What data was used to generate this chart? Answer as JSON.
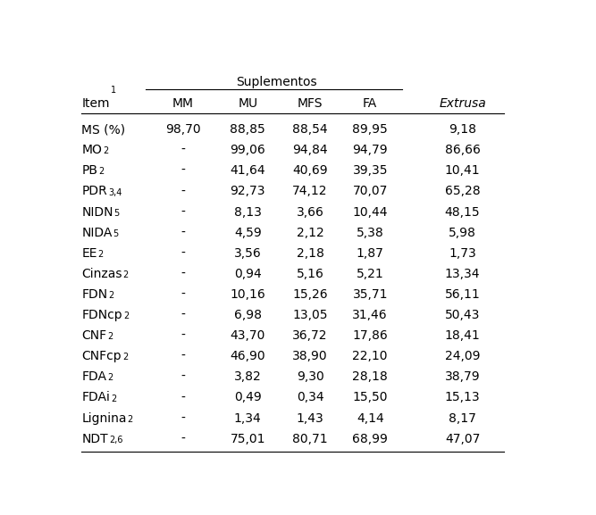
{
  "title_suplementos": "Suplementos",
  "col_headers": [
    "MM",
    "MU",
    "MFS",
    "FA",
    "Extrusa"
  ],
  "col_header_italic": [
    false,
    false,
    false,
    false,
    true
  ],
  "row_labels": [
    [
      "MS (%)",
      ""
    ],
    [
      "MO",
      "2"
    ],
    [
      "PB",
      "2"
    ],
    [
      "PDR",
      "3,4"
    ],
    [
      "NIDN",
      "5"
    ],
    [
      "NIDA",
      "5"
    ],
    [
      "EE",
      "2"
    ],
    [
      "Cinzas",
      "2"
    ],
    [
      "FDN",
      "2"
    ],
    [
      "FDNcp",
      "2"
    ],
    [
      "CNF",
      "2"
    ],
    [
      "CNFcp",
      "2"
    ],
    [
      "FDA",
      "2"
    ],
    [
      "FDAi",
      "2"
    ],
    [
      "Lignina",
      "2"
    ],
    [
      "NDT",
      "2,6"
    ]
  ],
  "item_header": [
    "Item",
    "1"
  ],
  "data": [
    [
      "98,70",
      "88,85",
      "88,54",
      "89,95",
      "9,18"
    ],
    [
      "-",
      "99,06",
      "94,84",
      "94,79",
      "86,66"
    ],
    [
      "-",
      "41,64",
      "40,69",
      "39,35",
      "10,41"
    ],
    [
      "-",
      "92,73",
      "74,12",
      "70,07",
      "65,28"
    ],
    [
      "-",
      "8,13",
      "3,66",
      "10,44",
      "48,15"
    ],
    [
      "-",
      "4,59",
      "2,12",
      "5,38",
      "5,98"
    ],
    [
      "-",
      "3,56",
      "2,18",
      "1,87",
      "1,73"
    ],
    [
      "-",
      "0,94",
      "5,16",
      "5,21",
      "13,34"
    ],
    [
      "-",
      "10,16",
      "15,26",
      "35,71",
      "56,11"
    ],
    [
      "-",
      "6,98",
      "13,05",
      "31,46",
      "50,43"
    ],
    [
      "-",
      "43,70",
      "36,72",
      "17,86",
      "18,41"
    ],
    [
      "-",
      "46,90",
      "38,90",
      "22,10",
      "24,09"
    ],
    [
      "-",
      "3,82",
      "9,30",
      "28,18",
      "38,79"
    ],
    [
      "-",
      "0,49",
      "0,34",
      "15,50",
      "15,13"
    ],
    [
      "-",
      "1,34",
      "1,43",
      "4,14",
      "8,17"
    ],
    [
      "-",
      "75,01",
      "80,71",
      "68,99",
      "47,07"
    ]
  ],
  "background_color": "#ffffff",
  "font_size": 10.0,
  "sup_font_size": 7.0,
  "header_font_size": 10.0,
  "font_family": "DejaVu Sans",
  "line_color": "#000000",
  "line_width": 0.8
}
